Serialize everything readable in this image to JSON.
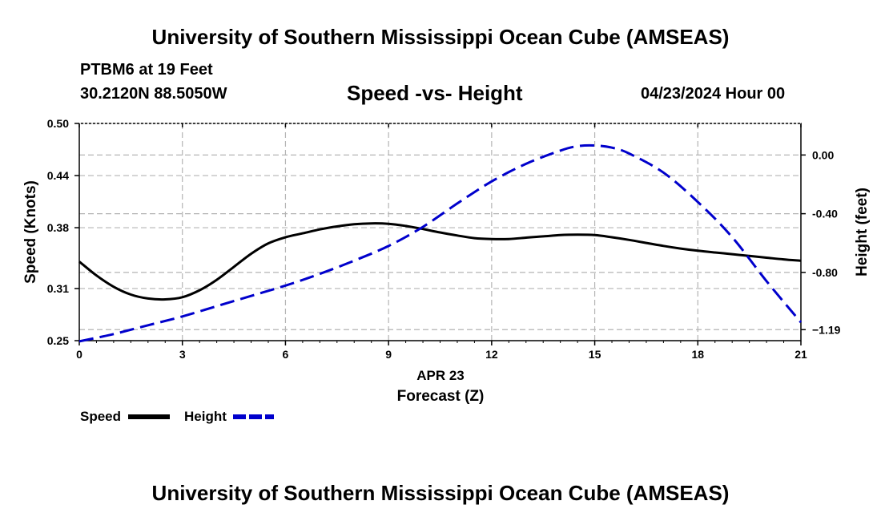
{
  "header": {
    "title": "University of Southern Mississippi Ocean Cube (AMSEAS)",
    "station": "PTBM6 at 19 Feet",
    "coords": "30.2120N  88.5050W",
    "subtitle": "Speed -vs- Height",
    "datetime": "04/23/2024 Hour 00"
  },
  "footer": {
    "title": "University of Southern Mississippi Ocean Cube (AMSEAS)"
  },
  "chart_data": {
    "type": "line",
    "title": "Speed -vs- Height",
    "xlabel": "Forecast (Z)",
    "date_label": "APR 23",
    "ylabel_left": "Speed (Knots)",
    "ylabel_right": "Height (feet)",
    "x_ticks": [
      0,
      3,
      6,
      9,
      12,
      15,
      18,
      21
    ],
    "x_tick_labels": [
      "0",
      "3",
      "6",
      "9",
      "12",
      "15",
      "18",
      "21"
    ],
    "xlim": [
      0,
      21
    ],
    "y_left_ticks": [
      0.25,
      0.31,
      0.38,
      0.44,
      0.5
    ],
    "y_left_tick_labels": [
      "0.25",
      "0.31",
      "0.38",
      "0.44",
      "0.50"
    ],
    "y_left_lim": [
      0.25,
      0.5
    ],
    "y_right_ticks": [
      0.0,
      -0.4,
      -0.8,
      -1.19
    ],
    "y_right_tick_labels": [
      "0.00",
      "-0.40",
      "-0.80",
      "−1.19"
    ],
    "y_right_lim": [
      -1.265,
      0.215
    ],
    "grid": true,
    "series": [
      {
        "name": "Speed",
        "axis": "left",
        "color": "#000000",
        "style": "solid",
        "x": [
          0,
          0.5,
          1,
          1.5,
          2,
          2.5,
          3,
          3.5,
          4,
          4.5,
          5,
          5.5,
          6,
          6.5,
          7,
          7.5,
          8,
          8.5,
          9,
          9.5,
          10,
          10.5,
          11,
          11.5,
          12,
          12.5,
          13,
          13.5,
          14,
          14.5,
          15,
          15.5,
          16,
          16.5,
          17,
          17.5,
          18,
          18.5,
          19,
          19.5,
          20,
          20.5,
          21
        ],
        "values": [
          0.341,
          0.325,
          0.312,
          0.303,
          0.2985,
          0.2975,
          0.3,
          0.308,
          0.32,
          0.335,
          0.35,
          0.362,
          0.369,
          0.3735,
          0.378,
          0.3815,
          0.384,
          0.385,
          0.3845,
          0.382,
          0.3785,
          0.3745,
          0.371,
          0.368,
          0.367,
          0.367,
          0.3685,
          0.37,
          0.3715,
          0.372,
          0.3715,
          0.369,
          0.366,
          0.3625,
          0.359,
          0.356,
          0.3535,
          0.3515,
          0.3495,
          0.3475,
          0.3455,
          0.3435,
          0.342
        ]
      },
      {
        "name": "Height",
        "axis": "right",
        "color": "#0000cc",
        "style": "dashed",
        "x": [
          0,
          1,
          2,
          3,
          4,
          5,
          6,
          7,
          8,
          9,
          10,
          11,
          12,
          13,
          14,
          14.5,
          15,
          15.5,
          16,
          17,
          18,
          19,
          20,
          21
        ],
        "values": [
          -1.27,
          -1.22,
          -1.16,
          -1.1,
          -1.03,
          -0.96,
          -0.89,
          -0.81,
          -0.72,
          -0.62,
          -0.49,
          -0.33,
          -0.18,
          -0.06,
          0.03,
          0.06,
          0.065,
          0.05,
          0.01,
          -0.12,
          -0.32,
          -0.56,
          -0.86,
          -1.14
        ]
      }
    ],
    "legend": [
      {
        "label": "Speed",
        "color": "#000000",
        "style": "solid"
      },
      {
        "label": "Height",
        "color": "#0000cc",
        "style": "dashed"
      }
    ],
    "legend_position": "bottom-left"
  }
}
